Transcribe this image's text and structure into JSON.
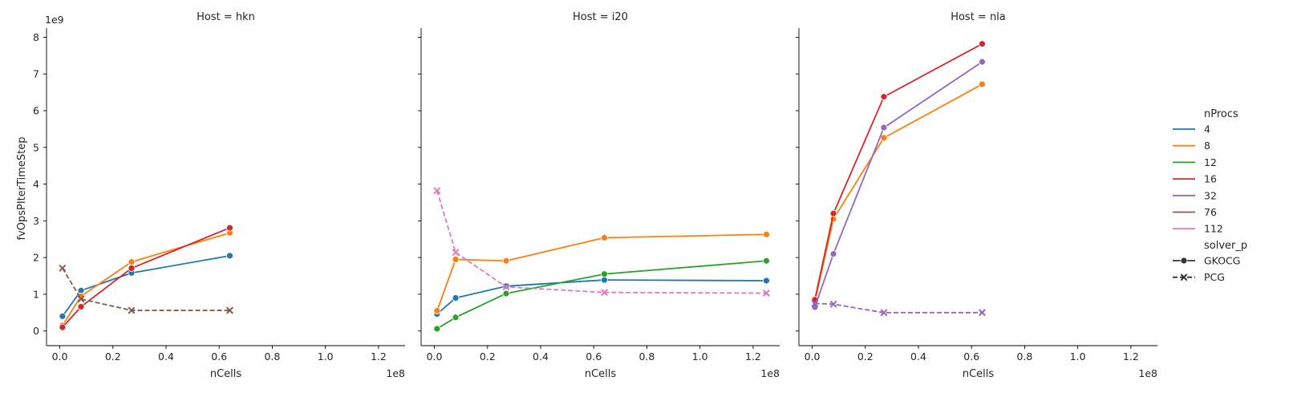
{
  "chart_data": {
    "type": "line",
    "ylabel": "fvOpsPIterTimeStep",
    "xlabel": "nCells",
    "x_offset_label": "1e8",
    "y_offset_label": "1e9",
    "xlim": [
      -0.05,
      1.3
    ],
    "ylim": [
      -0.4,
      8.25
    ],
    "x_ticks": [
      0.0,
      0.2,
      0.4,
      0.6,
      0.8,
      1.0,
      1.2
    ],
    "x_tick_labels": [
      "0.0",
      "0.2",
      "0.4",
      "0.6",
      "0.8",
      "1.0",
      "1.2"
    ],
    "y_ticks": [
      0,
      1,
      2,
      3,
      4,
      5,
      6,
      7,
      8
    ],
    "y_tick_labels": [
      "0",
      "1",
      "2",
      "3",
      "4",
      "5",
      "6",
      "7",
      "8"
    ],
    "colors": {
      "4": "#1f77b4",
      "8": "#ff7f0e",
      "12": "#2ca02c",
      "16": "#d62728",
      "32": "#9467bd",
      "76": "#8c564b",
      "112": "#e377c2"
    },
    "legend": {
      "hue_title": "nProcs",
      "hue_items": [
        "4",
        "8",
        "12",
        "16",
        "32",
        "76",
        "112"
      ],
      "style_title": "solver_p",
      "style_items": [
        "GKOCG",
        "PCG"
      ],
      "placement": "right"
    },
    "panels": [
      {
        "title": "Host = hkn",
        "series": [
          {
            "nProcs": "4",
            "solver": "GKOCG",
            "x": [
              0.01,
              0.08,
              0.27,
              0.64
            ],
            "y": [
              0.4,
              1.1,
              1.58,
              2.05
            ]
          },
          {
            "nProcs": "8",
            "solver": "GKOCG",
            "x": [
              0.01,
              0.08,
              0.27,
              0.64
            ],
            "y": [
              0.15,
              0.95,
              1.88,
              2.67
            ]
          },
          {
            "nProcs": "16",
            "solver": "GKOCG",
            "x": [
              0.01,
              0.08,
              0.27,
              0.64
            ],
            "y": [
              0.1,
              0.66,
              1.71,
              2.81
            ]
          },
          {
            "nProcs": "76",
            "solver": "PCG",
            "x": [
              0.01,
              0.08,
              0.27,
              0.64
            ],
            "y": [
              1.71,
              0.87,
              0.56,
              0.56
            ]
          }
        ]
      },
      {
        "title": "Host = i20",
        "series": [
          {
            "nProcs": "4",
            "solver": "GKOCG",
            "x": [
              0.01,
              0.08,
              0.27,
              0.64,
              1.25
            ],
            "y": [
              0.46,
              0.9,
              1.22,
              1.39,
              1.37
            ]
          },
          {
            "nProcs": "8",
            "solver": "GKOCG",
            "x": [
              0.01,
              0.08,
              0.27,
              0.64,
              1.25
            ],
            "y": [
              0.55,
              1.95,
              1.91,
              2.54,
              2.63
            ]
          },
          {
            "nProcs": "12",
            "solver": "GKOCG",
            "x": [
              0.01,
              0.08,
              0.27,
              0.64,
              1.25
            ],
            "y": [
              0.06,
              0.37,
              1.02,
              1.55,
              1.91
            ]
          },
          {
            "nProcs": "112",
            "solver": "PCG",
            "x": [
              0.01,
              0.08,
              0.27,
              0.64,
              1.25
            ],
            "y": [
              3.82,
              2.14,
              1.2,
              1.05,
              1.03
            ]
          }
        ]
      },
      {
        "title": "Host = nla",
        "series": [
          {
            "nProcs": "8",
            "solver": "GKOCG",
            "x": [
              0.01,
              0.08,
              0.27,
              0.64
            ],
            "y": [
              0.8,
              3.05,
              5.26,
              6.72
            ]
          },
          {
            "nProcs": "16",
            "solver": "GKOCG",
            "x": [
              0.01,
              0.08,
              0.27,
              0.64
            ],
            "y": [
              0.85,
              3.2,
              6.38,
              7.82
            ]
          },
          {
            "nProcs": "32",
            "solver": "GKOCG",
            "x": [
              0.01,
              0.08,
              0.27,
              0.64
            ],
            "y": [
              0.65,
              2.1,
              5.54,
              7.33
            ]
          },
          {
            "nProcs": "32",
            "solver": "PCG",
            "x": [
              0.01,
              0.08,
              0.27,
              0.64
            ],
            "y": [
              0.75,
              0.73,
              0.5,
              0.5
            ]
          }
        ]
      }
    ]
  }
}
